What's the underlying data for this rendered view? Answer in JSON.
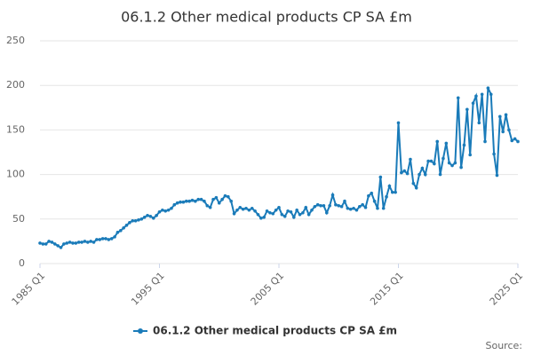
{
  "chart_data": {
    "type": "line",
    "title": "06.1.2 Other medical products CP SA £m",
    "source": "Source:",
    "categories": [
      "1985 Q1",
      null,
      null,
      null,
      null,
      null,
      null,
      null,
      null,
      null,
      null,
      null,
      null,
      null,
      null,
      null,
      null,
      null,
      null,
      null,
      null,
      null,
      null,
      null,
      null,
      null,
      null,
      null,
      null,
      null,
      null,
      null,
      null,
      null,
      null,
      null,
      null,
      null,
      null,
      null,
      "1995 Q1",
      null,
      null,
      null,
      null,
      null,
      null,
      null,
      null,
      null,
      null,
      null,
      null,
      null,
      null,
      null,
      null,
      null,
      null,
      null,
      null,
      null,
      null,
      null,
      null,
      null,
      null,
      null,
      null,
      null,
      null,
      null,
      null,
      null,
      null,
      null,
      null,
      null,
      null,
      null,
      "2005 Q1",
      null,
      null,
      null,
      null,
      null,
      null,
      null,
      null,
      null,
      null,
      null,
      null,
      null,
      null,
      null,
      null,
      null,
      null,
      null,
      null,
      null,
      null,
      null,
      null,
      null,
      null,
      null,
      null,
      null,
      null,
      null,
      null,
      null,
      null,
      null,
      null,
      null,
      null,
      null,
      "2015 Q1",
      null,
      null,
      null,
      null,
      null,
      null,
      null,
      null,
      null,
      null,
      null,
      null,
      null,
      null,
      null,
      null,
      null,
      null,
      null,
      null,
      null,
      null,
      null,
      null,
      null,
      null,
      null,
      null,
      null,
      null,
      null,
      null,
      null,
      null,
      null,
      null,
      null,
      null,
      null,
      "2025 Q1"
    ],
    "series": [
      {
        "name": "06.1.2 Other medical products CP SA £m",
        "color": "#1a7bb9",
        "values": [
          23,
          22,
          22,
          25,
          24,
          22,
          20,
          18,
          22,
          23,
          24,
          23,
          23,
          24,
          24,
          25,
          24,
          25,
          24,
          27,
          27,
          28,
          28,
          27,
          28,
          30,
          35,
          37,
          40,
          43,
          46,
          48,
          48,
          49,
          50,
          52,
          54,
          53,
          51,
          54,
          58,
          60,
          59,
          60,
          62,
          66,
          68,
          69,
          69,
          70,
          70,
          71,
          70,
          72,
          72,
          70,
          65,
          63,
          72,
          74,
          68,
          72,
          76,
          75,
          70,
          56,
          60,
          63,
          61,
          62,
          60,
          62,
          59,
          55,
          51,
          52,
          59,
          57,
          56,
          60,
          63,
          55,
          53,
          59,
          58,
          52,
          60,
          55,
          57,
          63,
          55,
          60,
          64,
          66,
          65,
          65,
          57,
          65,
          77,
          66,
          65,
          64,
          70,
          62,
          61,
          62,
          60,
          64,
          66,
          63,
          76,
          79,
          70,
          62,
          97,
          62,
          75,
          87,
          80,
          80,
          158,
          102,
          104,
          101,
          117,
          90,
          85,
          100,
          107,
          100,
          115,
          115,
          112,
          137,
          100,
          118,
          135,
          113,
          110,
          113,
          186,
          108,
          133,
          173,
          122,
          180,
          188,
          158,
          190,
          137,
          197,
          190,
          123,
          99,
          165,
          148,
          167,
          150,
          138,
          140,
          137
        ]
      }
    ],
    "ylim": [
      0,
      250
    ],
    "yticks": [
      0,
      50,
      100,
      150,
      200,
      250
    ],
    "grid": true,
    "legend": "bottom"
  }
}
